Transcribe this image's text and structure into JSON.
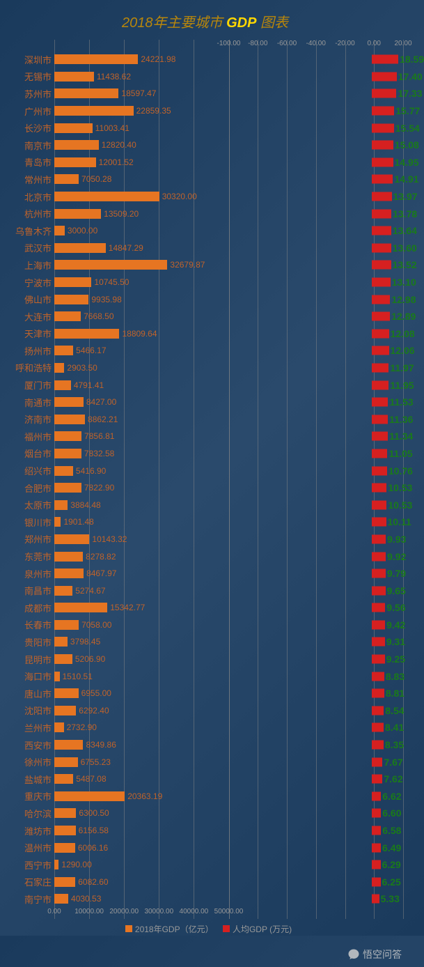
{
  "title": {
    "part1": "2018年主要城市 ",
    "part2": "GDP",
    "part3": " 图表"
  },
  "legend": {
    "series1": "2018年GDP（亿元）",
    "series2": "人均GDP (万元)"
  },
  "watermark": "悟空问答",
  "chart": {
    "type": "bar",
    "left_axis": {
      "min": 0,
      "max": 50000,
      "ticks": [
        0,
        10000,
        20000,
        30000,
        40000,
        50000
      ],
      "tick_labels": [
        "0.00",
        "10000.00",
        "20000.00",
        "30000.00",
        "40000.00",
        "50000.00"
      ]
    },
    "right_axis": {
      "min": -100,
      "max": 20,
      "ticks": [
        -100,
        -80,
        -60,
        -40,
        -20,
        0,
        20
      ],
      "tick_labels": [
        "-100.00",
        "-80.00",
        "-60.00",
        "-40.00",
        "-20.00",
        "0.00",
        "20.00"
      ]
    },
    "bar1_color": "#e67522",
    "bar2_color": "#d62020",
    "bar1_label_color": "#c0632a",
    "bar2_label_color": "#1a7a1a",
    "city_label_color": "#c0632a",
    "background": "#1a3a5c",
    "grid_color": "#888888",
    "cities": [
      {
        "name": "深圳市",
        "gdp": 24221.98,
        "pc": 18.59
      },
      {
        "name": "无锡市",
        "gdp": 11438.62,
        "pc": 17.4
      },
      {
        "name": "苏州市",
        "gdp": 18597.47,
        "pc": 17.33
      },
      {
        "name": "广州市",
        "gdp": 22859.35,
        "pc": 15.77
      },
      {
        "name": "长沙市",
        "gdp": 11003.41,
        "pc": 15.54
      },
      {
        "name": "南京市",
        "gdp": 12820.4,
        "pc": 15.08
      },
      {
        "name": "青岛市",
        "gdp": 12001.52,
        "pc": 14.95
      },
      {
        "name": "常州市",
        "gdp": 7050.28,
        "pc": 14.91
      },
      {
        "name": "北京市",
        "gdp": 30320.0,
        "pc": 13.97
      },
      {
        "name": "杭州市",
        "gdp": 13509.2,
        "pc": 13.78
      },
      {
        "name": "乌鲁木齐",
        "gdp": 3000.0,
        "pc": 13.64
      },
      {
        "name": "武汉市",
        "gdp": 14847.29,
        "pc": 13.6
      },
      {
        "name": "上海市",
        "gdp": 32679.87,
        "pc": 13.52
      },
      {
        "name": "宁波市",
        "gdp": 10745.5,
        "pc": 13.1
      },
      {
        "name": "佛山市",
        "gdp": 9935.98,
        "pc": 12.98
      },
      {
        "name": "大连市",
        "gdp": 7668.5,
        "pc": 12.89
      },
      {
        "name": "天津市",
        "gdp": 18809.64,
        "pc": 12.08
      },
      {
        "name": "扬州市",
        "gdp": 5466.17,
        "pc": 12.06
      },
      {
        "name": "呼和浩特",
        "gdp": 2903.5,
        "pc": 11.97
      },
      {
        "name": "厦门市",
        "gdp": 4791.41,
        "pc": 11.95
      },
      {
        "name": "南通市",
        "gdp": 8427.0,
        "pc": 11.53
      },
      {
        "name": "济南市",
        "gdp": 8862.21,
        "pc": 11.36
      },
      {
        "name": "福州市",
        "gdp": 7856.81,
        "pc": 11.34
      },
      {
        "name": "烟台市",
        "gdp": 7832.58,
        "pc": 11.05
      },
      {
        "name": "绍兴市",
        "gdp": 5416.9,
        "pc": 10.76
      },
      {
        "name": "合肥市",
        "gdp": 7822.9,
        "pc": 10.53
      },
      {
        "name": "太原市",
        "gdp": 3884.48,
        "pc": 10.53
      },
      {
        "name": "银川市",
        "gdp": 1901.48,
        "pc": 10.11
      },
      {
        "name": "郑州市",
        "gdp": 10143.32,
        "pc": 9.93
      },
      {
        "name": "东莞市",
        "gdp": 8278.82,
        "pc": 9.92
      },
      {
        "name": "泉州市",
        "gdp": 8467.97,
        "pc": 9.79
      },
      {
        "name": "南昌市",
        "gdp": 5274.67,
        "pc": 9.65
      },
      {
        "name": "成都市",
        "gdp": 15342.77,
        "pc": 9.56
      },
      {
        "name": "长春市",
        "gdp": 7058.0,
        "pc": 9.42
      },
      {
        "name": "贵阳市",
        "gdp": 3798.45,
        "pc": 9.31
      },
      {
        "name": "昆明市",
        "gdp": 5206.9,
        "pc": 9.25
      },
      {
        "name": "海口市",
        "gdp": 1510.51,
        "pc": 8.83
      },
      {
        "name": "唐山市",
        "gdp": 6955.0,
        "pc": 8.81
      },
      {
        "name": "沈阳市",
        "gdp": 6292.4,
        "pc": 8.54
      },
      {
        "name": "兰州市",
        "gdp": 2732.9,
        "pc": 8.41
      },
      {
        "name": "西安市",
        "gdp": 8349.86,
        "pc": 8.35
      },
      {
        "name": "徐州市",
        "gdp": 6755.23,
        "pc": 7.67
      },
      {
        "name": "盐城市",
        "gdp": 5487.08,
        "pc": 7.62
      },
      {
        "name": "重庆市",
        "gdp": 20363.19,
        "pc": 6.62
      },
      {
        "name": "哈尔滨",
        "gdp": 6300.5,
        "pc": 6.6
      },
      {
        "name": "潍坊市",
        "gdp": 6156.58,
        "pc": 6.58
      },
      {
        "name": "温州市",
        "gdp": 6006.16,
        "pc": 6.49
      },
      {
        "name": "西宁市",
        "gdp": 1290.0,
        "pc": 6.29
      },
      {
        "name": "石家庄",
        "gdp": 6082.6,
        "pc": 6.25
      },
      {
        "name": "南宁市",
        "gdp": 4030.53,
        "pc": 5.33
      }
    ]
  }
}
